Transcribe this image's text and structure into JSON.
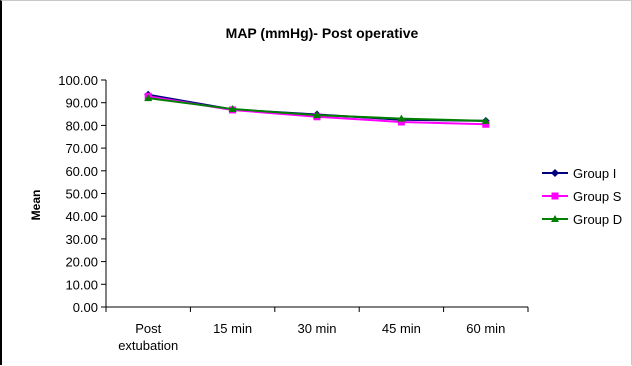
{
  "chart_data": {
    "type": "line",
    "title": "MAP (mmHg)- Post operative",
    "xlabel": "",
    "ylabel": "Mean",
    "categories": [
      "Post extubation",
      "15 min",
      "30 min",
      "45 min",
      "60 min"
    ],
    "ylim": [
      0,
      100
    ],
    "yticks": [
      "0.00",
      "10.00",
      "20.00",
      "30.00",
      "40.00",
      "50.00",
      "60.00",
      "70.00",
      "80.00",
      "90.00",
      "100.00"
    ],
    "grid": false,
    "legend_position": "right",
    "series": [
      {
        "name": "Group I",
        "values": [
          93.5,
          87.0,
          84.8,
          82.5,
          82.0
        ],
        "color": "#000080",
        "marker": "diamond"
      },
      {
        "name": "Group S",
        "values": [
          92.8,
          86.8,
          83.8,
          81.5,
          80.5
        ],
        "color": "#ff00ff",
        "marker": "square"
      },
      {
        "name": "Group D",
        "values": [
          92.0,
          87.2,
          84.5,
          83.0,
          82.0
        ],
        "color": "#008000",
        "marker": "triangle"
      }
    ]
  }
}
